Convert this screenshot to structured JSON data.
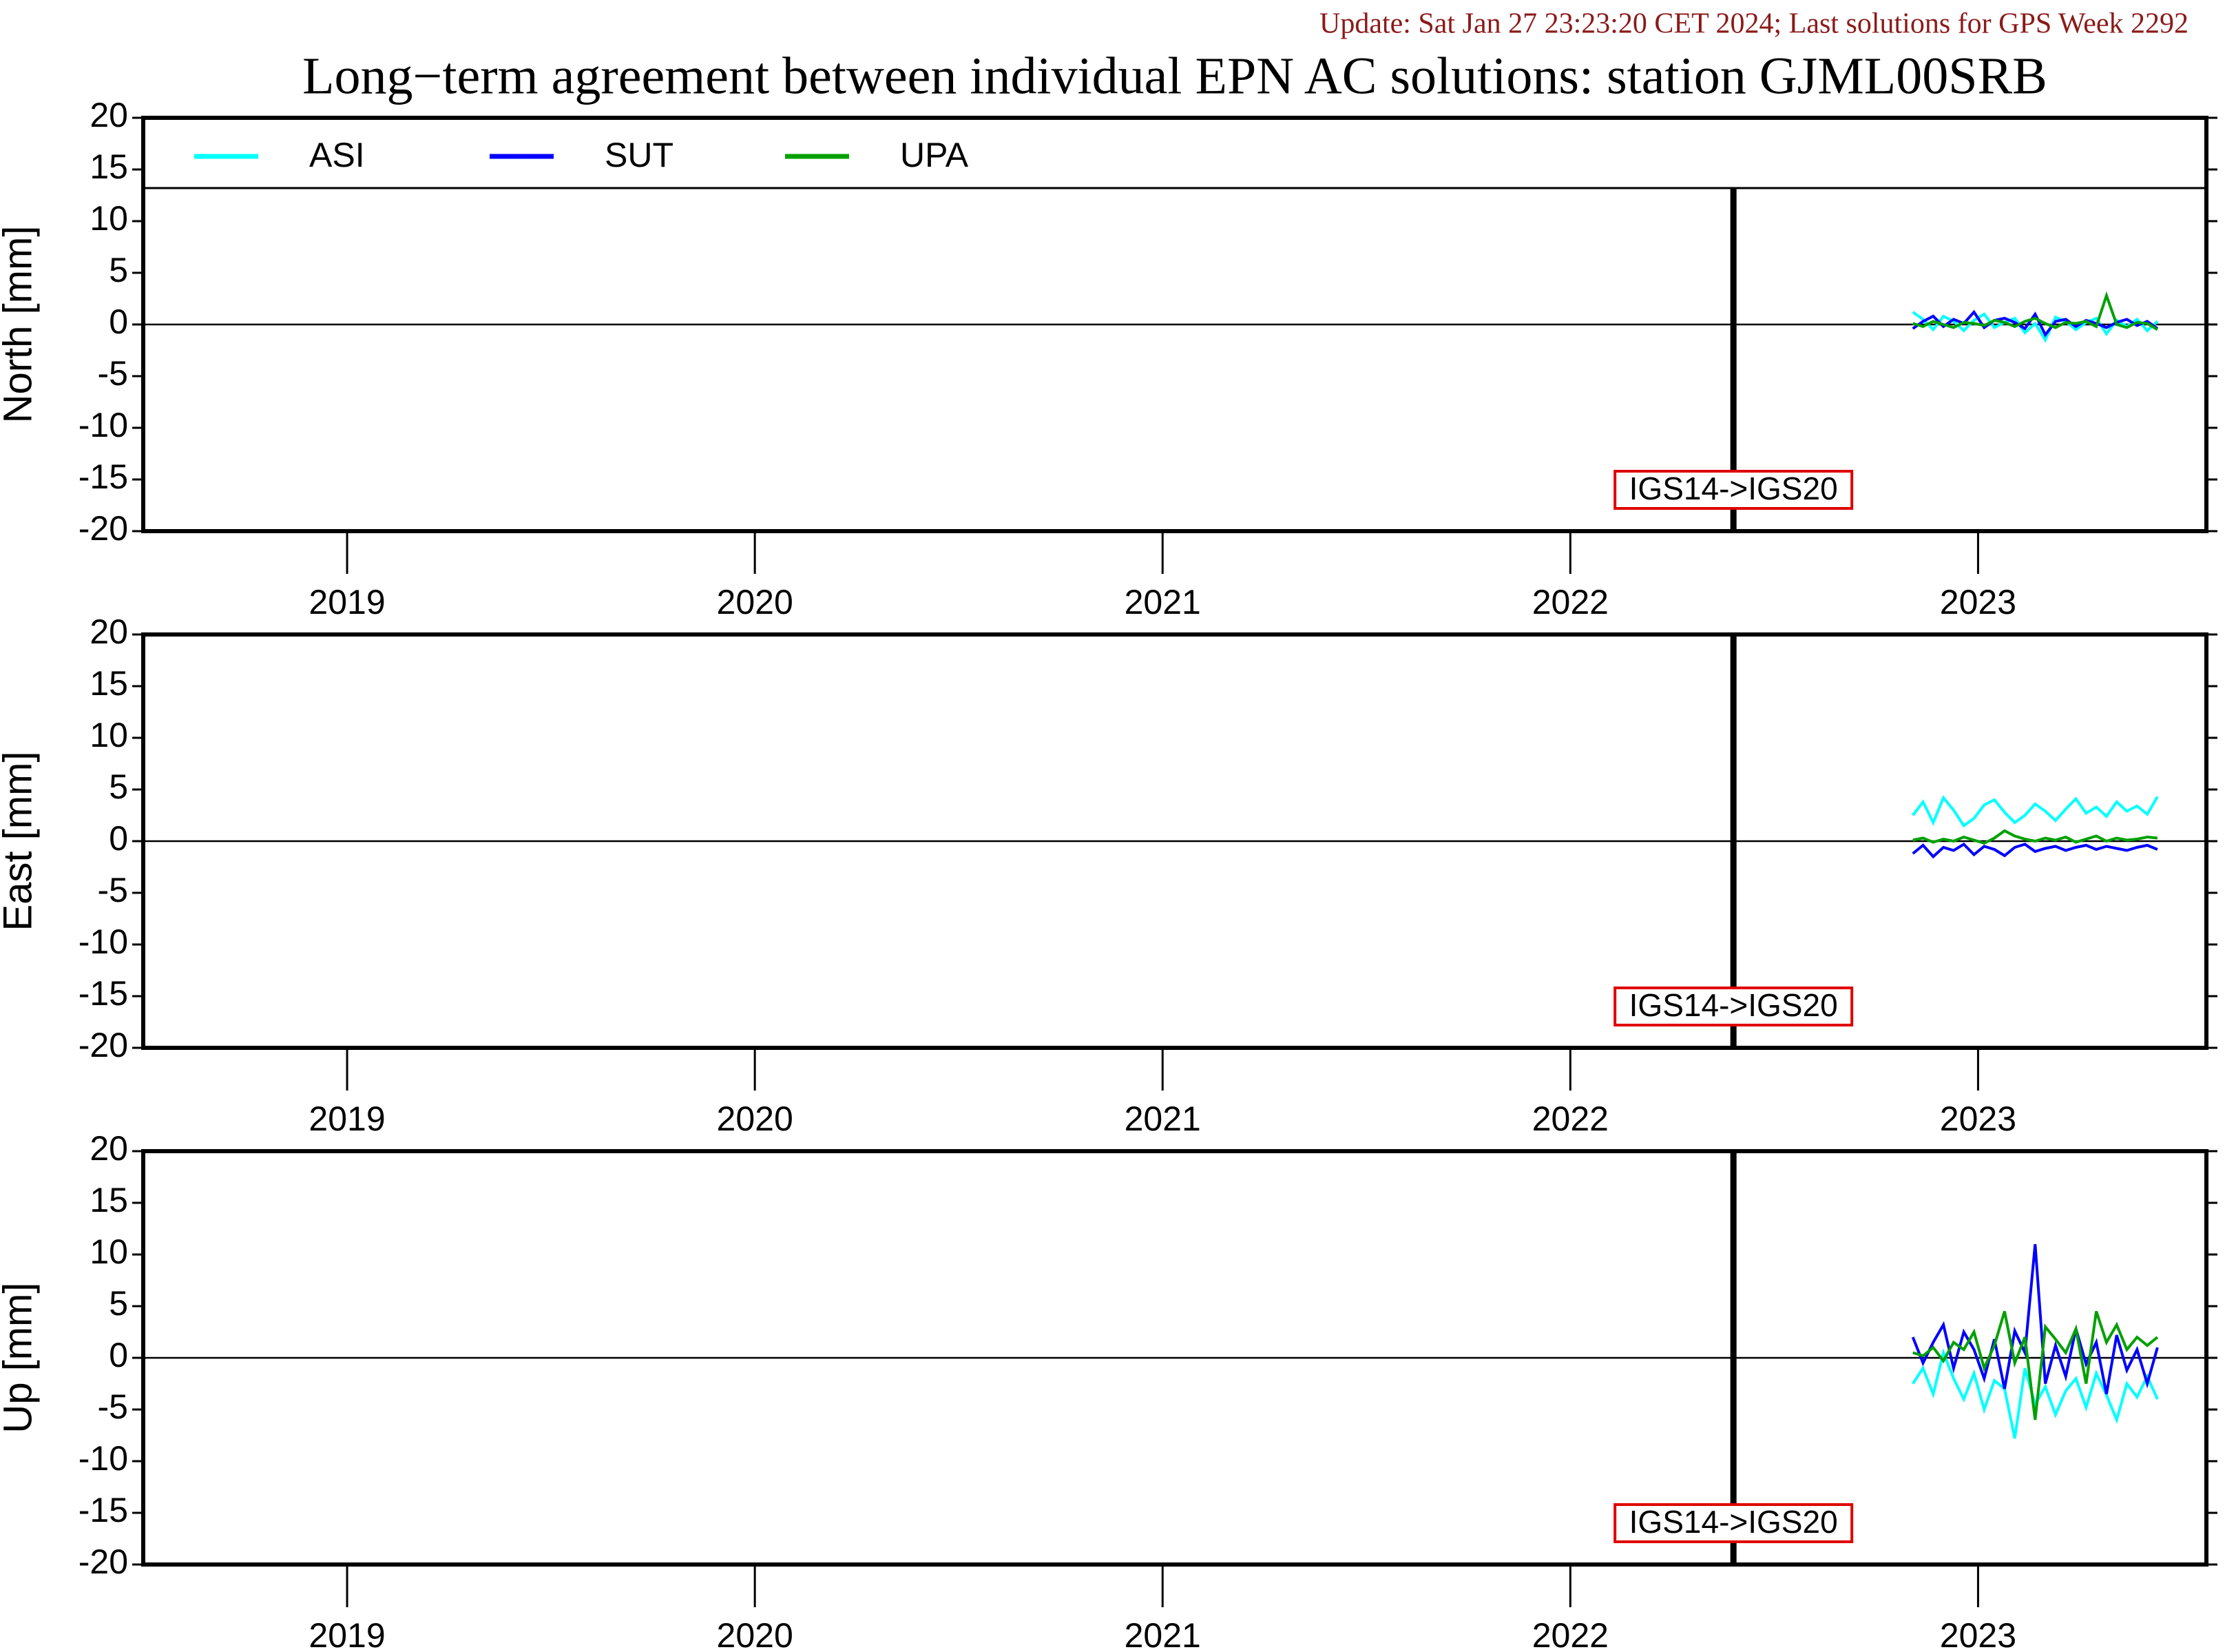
{
  "title": "Long−term agreement between individual EPN AC solutions: station GJML00SRB",
  "subtitle": "Update: Sat Jan 27 23:23:20 CET 2024; Last solutions for GPS Week 2292",
  "chart_data": [
    {
      "type": "line",
      "ylabel": "North [mm]",
      "legend": "top",
      "xlim": [
        2019,
        2024.06
      ],
      "xticks": [
        {
          "value": 2019.5,
          "label": "2019"
        },
        {
          "value": 2020.5,
          "label": "2020"
        },
        {
          "value": 2021.5,
          "label": "2021"
        },
        {
          "value": 2022.5,
          "label": "2022"
        },
        {
          "value": 2023.5,
          "label": "2023"
        }
      ],
      "ylim": [
        -20,
        20
      ],
      "yticks": [
        -20,
        -15,
        -10,
        -5,
        0,
        5,
        10,
        15,
        20
      ],
      "annotation": {
        "text": "IGS14->IGS20",
        "x": 2022.9,
        "y": -16
      },
      "x": [
        2023.34,
        2023.365,
        2023.39,
        2023.415,
        2023.44,
        2023.465,
        2023.49,
        2023.515,
        2023.54,
        2023.565,
        2023.59,
        2023.615,
        2023.64,
        2023.665,
        2023.69,
        2023.715,
        2023.74,
        2023.765,
        2023.79,
        2023.815,
        2023.84,
        2023.865,
        2023.89,
        2023.915,
        2023.94
      ],
      "series": [
        {
          "name": "ASI",
          "color": "#00ffff",
          "values": [
            1.2,
            0.5,
            -0.5,
            0.8,
            0.3,
            -0.6,
            0.4,
            1.0,
            -0.3,
            0.2,
            0.6,
            -0.8,
            0.1,
            -1.5,
            0.7,
            0.3,
            -0.5,
            0.2,
            0.6,
            -0.9,
            0.4,
            -0.2,
            0.5,
            -0.6,
            0.3
          ]
        },
        {
          "name": "SUT",
          "color": "#0000ff",
          "values": [
            -0.4,
            0.3,
            0.8,
            -0.2,
            0.5,
            0.1,
            1.2,
            -0.3,
            0.4,
            0.6,
            0.2,
            -0.4,
            1.0,
            -1.0,
            0.3,
            0.5,
            -0.2,
            0.4,
            0.1,
            -0.3,
            0.2,
            0.5,
            -0.1,
            0.3,
            -0.4
          ]
        },
        {
          "name": "UPA",
          "color": "#00a000",
          "values": [
            0.1,
            -0.2,
            0.3,
            0.0,
            -0.3,
            0.2,
            0.1,
            -0.1,
            0.4,
            0.2,
            -0.2,
            0.3,
            0.6,
            0.1,
            -0.3,
            0.2,
            0.1,
            0.3,
            -0.2,
            2.8,
            0.0,
            -0.3,
            0.2,
            0.1,
            -0.5
          ]
        }
      ]
    },
    {
      "type": "line",
      "ylabel": "East [mm]",
      "xlim": [
        2019,
        2024.06
      ],
      "xticks": [
        {
          "value": 2019.5,
          "label": "2019"
        },
        {
          "value": 2020.5,
          "label": "2020"
        },
        {
          "value": 2021.5,
          "label": "2021"
        },
        {
          "value": 2022.5,
          "label": "2022"
        },
        {
          "value": 2023.5,
          "label": "2023"
        }
      ],
      "ylim": [
        -20,
        20
      ],
      "yticks": [
        -20,
        -15,
        -10,
        -5,
        0,
        5,
        10,
        15,
        20
      ],
      "annotation": {
        "text": "IGS14->IGS20",
        "x": 2022.9,
        "y": -16
      },
      "x": [
        2023.34,
        2023.365,
        2023.39,
        2023.415,
        2023.44,
        2023.465,
        2023.49,
        2023.515,
        2023.54,
        2023.565,
        2023.59,
        2023.615,
        2023.64,
        2023.665,
        2023.69,
        2023.715,
        2023.74,
        2023.765,
        2023.79,
        2023.815,
        2023.84,
        2023.865,
        2023.89,
        2023.915,
        2023.94
      ],
      "series": [
        {
          "name": "ASI",
          "color": "#00ffff",
          "values": [
            2.5,
            3.8,
            1.8,
            4.2,
            3.0,
            1.5,
            2.2,
            3.5,
            4.0,
            2.8,
            1.8,
            2.5,
            3.6,
            2.9,
            2.0,
            3.1,
            4.1,
            2.7,
            3.3,
            2.4,
            3.8,
            2.9,
            3.4,
            2.6,
            4.3
          ]
        },
        {
          "name": "SUT",
          "color": "#0000ff",
          "values": [
            -1.2,
            -0.4,
            -1.5,
            -0.6,
            -0.9,
            -0.3,
            -1.3,
            -0.5,
            -0.8,
            -1.4,
            -0.6,
            -0.3,
            -1.0,
            -0.7,
            -0.5,
            -0.9,
            -0.6,
            -0.4,
            -0.8,
            -0.5,
            -0.7,
            -0.9,
            -0.6,
            -0.4,
            -0.8
          ]
        },
        {
          "name": "UPA",
          "color": "#00a000",
          "values": [
            0.1,
            0.3,
            -0.1,
            0.2,
            0.0,
            0.4,
            0.1,
            -0.2,
            0.3,
            1.0,
            0.5,
            0.2,
            0.0,
            0.3,
            0.1,
            0.4,
            -0.1,
            0.2,
            0.5,
            0.0,
            0.3,
            0.1,
            0.2,
            0.4,
            0.3
          ]
        }
      ]
    },
    {
      "type": "line",
      "ylabel": "Up [mm]",
      "xlim": [
        2019,
        2024.06
      ],
      "xticks": [
        {
          "value": 2019.5,
          "label": "2019"
        },
        {
          "value": 2020.5,
          "label": "2020"
        },
        {
          "value": 2021.5,
          "label": "2021"
        },
        {
          "value": 2022.5,
          "label": "2022"
        },
        {
          "value": 2023.5,
          "label": "2023"
        }
      ],
      "ylim": [
        -20,
        20
      ],
      "yticks": [
        -20,
        -15,
        -10,
        -5,
        0,
        5,
        10,
        15,
        20
      ],
      "annotation": {
        "text": "IGS14->IGS20",
        "x": 2022.9,
        "y": -16
      },
      "x": [
        2023.34,
        2023.365,
        2023.39,
        2023.415,
        2023.44,
        2023.465,
        2023.49,
        2023.515,
        2023.54,
        2023.565,
        2023.59,
        2023.615,
        2023.64,
        2023.665,
        2023.69,
        2023.715,
        2023.74,
        2023.765,
        2023.79,
        2023.815,
        2023.84,
        2023.865,
        2023.89,
        2023.915,
        2023.94
      ],
      "series": [
        {
          "name": "ASI",
          "color": "#00ffff",
          "values": [
            -2.5,
            -1.0,
            -3.5,
            0.5,
            -2.0,
            -4.0,
            -1.5,
            -5.0,
            -2.2,
            -3.0,
            -7.8,
            -1.0,
            -4.5,
            -2.8,
            -5.5,
            -3.2,
            -2.0,
            -4.8,
            -1.5,
            -3.6,
            -6.0,
            -2.5,
            -3.8,
            -1.8,
            -4.0
          ]
        },
        {
          "name": "SUT",
          "color": "#0000ff",
          "values": [
            2.0,
            -0.5,
            1.5,
            3.2,
            -1.0,
            2.5,
            0.8,
            -2.0,
            1.8,
            -3.0,
            2.6,
            0.5,
            11.0,
            -2.5,
            1.2,
            -1.8,
            2.8,
            -0.6,
            1.5,
            -3.5,
            2.2,
            -1.2,
            0.8,
            -2.5,
            1.0
          ]
        },
        {
          "name": "UPA",
          "color": "#00a000",
          "values": [
            0.5,
            0.2,
            1.0,
            -0.3,
            1.5,
            0.8,
            2.5,
            -1.0,
            1.2,
            4.5,
            -0.5,
            2.0,
            -6.0,
            3.0,
            1.8,
            0.5,
            2.8,
            -2.5,
            4.5,
            1.5,
            3.2,
            0.8,
            2.0,
            1.2,
            2.0
          ]
        }
      ]
    }
  ]
}
